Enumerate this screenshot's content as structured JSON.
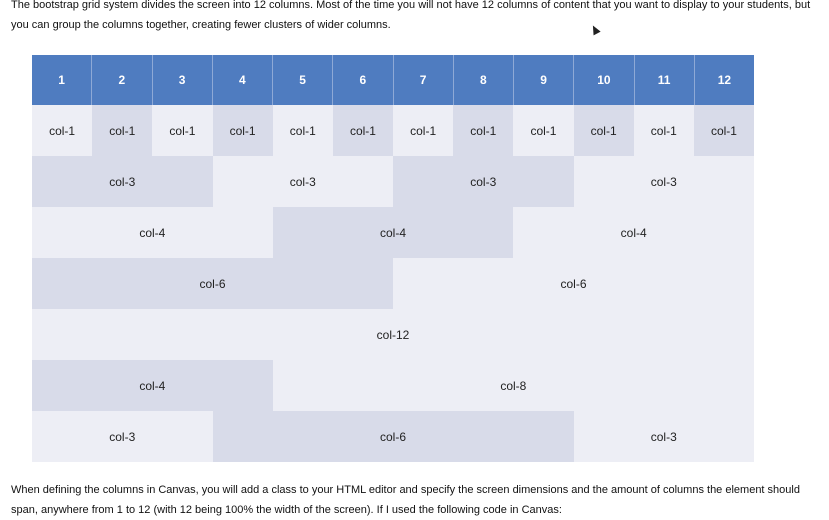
{
  "intro_text": "The bootstrap grid system divides the screen into 12 columns.  Most of the time you will not have 12 columns of content that you want to display to your students, but you can group the columns together, creating fewer clusters of wider columns.",
  "footer_text": "When defining the columns in Canvas, you will add a class to your HTML editor and specify the screen dimensions and the amount of columns the element should span, anywhere from 1 to 12 (with 12 being 100% the width of the screen).  If I used the following code in Canvas:",
  "grid": {
    "header": [
      "1",
      "2",
      "3",
      "4",
      "5",
      "6",
      "7",
      "8",
      "9",
      "10",
      "11",
      "12"
    ],
    "rows": [
      [
        {
          "label": "col-1",
          "span": 1
        },
        {
          "label": "col-1",
          "span": 1
        },
        {
          "label": "col-1",
          "span": 1
        },
        {
          "label": "col-1",
          "span": 1
        },
        {
          "label": "col-1",
          "span": 1
        },
        {
          "label": "col-1",
          "span": 1
        },
        {
          "label": "col-1",
          "span": 1
        },
        {
          "label": "col-1",
          "span": 1
        },
        {
          "label": "col-1",
          "span": 1
        },
        {
          "label": "col-1",
          "span": 1
        },
        {
          "label": "col-1",
          "span": 1
        },
        {
          "label": "col-1",
          "span": 1
        }
      ],
      [
        {
          "label": "col-3",
          "span": 3
        },
        {
          "label": "col-3",
          "span": 3
        },
        {
          "label": "col-3",
          "span": 3
        },
        {
          "label": "col-3",
          "span": 3
        }
      ],
      [
        {
          "label": "col-4",
          "span": 4
        },
        {
          "label": "col-4",
          "span": 4
        },
        {
          "label": "col-4",
          "span": 4
        }
      ],
      [
        {
          "label": "col-6",
          "span": 6
        },
        {
          "label": "col-6",
          "span": 6
        }
      ],
      [
        {
          "label": "col-12",
          "span": 12
        }
      ],
      [
        {
          "label": "col-4",
          "span": 4
        },
        {
          "label": "col-8",
          "span": 8
        }
      ],
      [
        {
          "label": "col-3",
          "span": 3
        },
        {
          "label": "col-6",
          "span": 6
        },
        {
          "label": "col-3",
          "span": 3
        }
      ]
    ]
  },
  "colors": {
    "header": "#4f7cc0",
    "light": "#edeef5",
    "dark": "#d8dbe9"
  }
}
